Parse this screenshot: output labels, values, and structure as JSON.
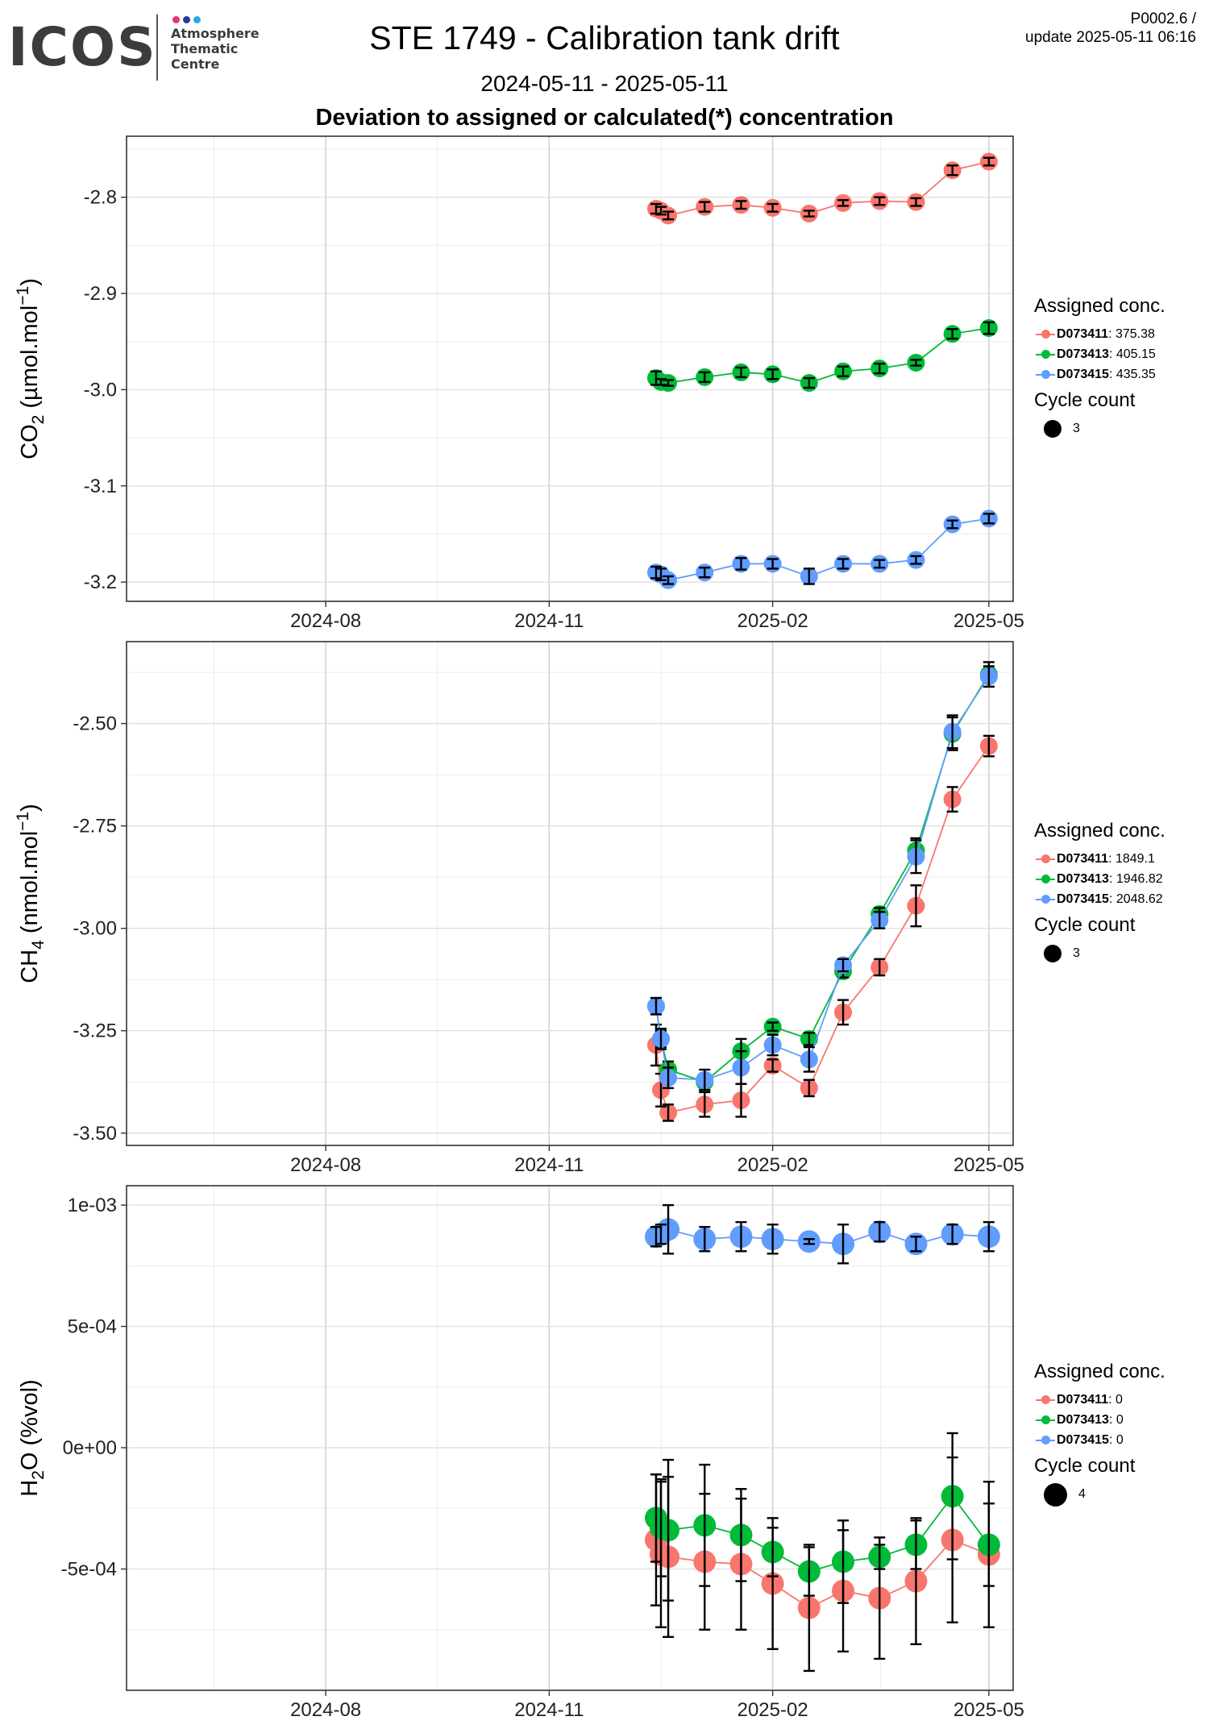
{
  "header": {
    "logo_word": "ICOS",
    "logo_sub": [
      "Atmosphere",
      "Thematic",
      "Centre"
    ],
    "logo_dot_colors": [
      "#e8336f",
      "#2b3a8f",
      "#27a9e1"
    ],
    "title": "STE 1749 - Calibration tank drift",
    "version_line1": "P0002.6 /",
    "version_line2": "update  2025-05-11 06:16",
    "date_range": "2024-05-11 - 2025-05-11",
    "subtitle": "Deviation to assigned or calculated(*) concentration"
  },
  "colors": {
    "D073411": "#f8766d",
    "D073413": "#00ba38",
    "D073415": "#619cff"
  },
  "chart_data": [
    {
      "type": "scatter",
      "ylabel_main": "CO",
      "ylabel_sub": "2",
      "ylabel_rest": " (µmol.mol",
      "ylabel_sup": "−1",
      "ylabel_close": ")",
      "xlim": [
        "2024-05-11",
        "2025-05-11"
      ],
      "ylim": [
        -3.22,
        -2.7366
      ],
      "yticks": [
        -2.8,
        -2.9,
        -3.0,
        -3.1,
        -3.2
      ],
      "ytick_labels": [
        "-2.8",
        "-2.9",
        "-3.0",
        "-3.1",
        "-3.2"
      ],
      "xticks": [
        "2024-08-01",
        "2024-11-01",
        "2025-02-01",
        "2025-05-01"
      ],
      "xtick_labels": [
        "2024-08",
        "2024-11",
        "2025-02",
        "2025-05"
      ],
      "point_size": 3,
      "series": [
        {
          "name": "D073411",
          "assigned": "375.38",
          "x": [
            "2024-12-15",
            "2024-12-17",
            "2024-12-20",
            "2025-01-04",
            "2025-01-19",
            "2025-02-01",
            "2025-02-16",
            "2025-03-02",
            "2025-03-17",
            "2025-04-01",
            "2025-04-16",
            "2025-05-01"
          ],
          "y": [
            -2.812,
            -2.814,
            -2.819,
            -2.81,
            -2.808,
            -2.811,
            -2.817,
            -2.806,
            -2.804,
            -2.805,
            -2.772,
            -2.763
          ],
          "err": [
            0.005,
            0.004,
            0.004,
            0.005,
            0.004,
            0.004,
            0.003,
            0.003,
            0.004,
            0.004,
            0.005,
            0.004
          ]
        },
        {
          "name": "D073413",
          "assigned": "405.15",
          "x": [
            "2024-12-15",
            "2024-12-17",
            "2024-12-20",
            "2025-01-04",
            "2025-01-19",
            "2025-02-01",
            "2025-02-16",
            "2025-03-02",
            "2025-03-17",
            "2025-04-01",
            "2025-04-16",
            "2025-05-01"
          ],
          "y": [
            -2.988,
            -2.992,
            -2.993,
            -2.987,
            -2.982,
            -2.984,
            -2.993,
            -2.981,
            -2.978,
            -2.972,
            -2.942,
            -2.936
          ],
          "err": [
            0.007,
            0.003,
            0.003,
            0.005,
            0.005,
            0.005,
            0.005,
            0.005,
            0.005,
            0.003,
            0.005,
            0.006
          ]
        },
        {
          "name": "D073415",
          "assigned": "435.35",
          "x": [
            "2024-12-15",
            "2024-12-17",
            "2024-12-20",
            "2025-01-04",
            "2025-01-19",
            "2025-02-01",
            "2025-02-16",
            "2025-03-02",
            "2025-03-17",
            "2025-04-01",
            "2025-04-16",
            "2025-05-01"
          ],
          "y": [
            -3.19,
            -3.192,
            -3.198,
            -3.19,
            -3.181,
            -3.181,
            -3.194,
            -3.181,
            -3.181,
            -3.177,
            -3.14,
            -3.134
          ],
          "err": [
            0.006,
            0.006,
            0.004,
            0.005,
            0.006,
            0.005,
            0.008,
            0.005,
            0.004,
            0.004,
            0.004,
            0.005
          ]
        }
      ]
    },
    {
      "type": "scatter",
      "ylabel_main": "CH",
      "ylabel_sub": "4",
      "ylabel_rest": " (nmol.mol",
      "ylabel_sup": "−1",
      "ylabel_close": ")",
      "xlim": [
        "2024-05-11",
        "2025-05-11"
      ],
      "ylim": [
        -3.53,
        -2.3
      ],
      "yticks": [
        -2.5,
        -2.75,
        -3.0,
        -3.25,
        -3.5
      ],
      "ytick_labels": [
        "-2.50",
        "-2.75",
        "-3.00",
        "-3.25",
        "-3.50"
      ],
      "xticks": [
        "2024-08-01",
        "2024-11-01",
        "2025-02-01",
        "2025-05-01"
      ],
      "xtick_labels": [
        "2024-08",
        "2024-11",
        "2025-02",
        "2025-05"
      ],
      "point_size": 3,
      "series": [
        {
          "name": "D073411",
          "assigned": "1849.1",
          "x": [
            "2024-12-15",
            "2024-12-17",
            "2024-12-20",
            "2025-01-04",
            "2025-01-19",
            "2025-02-01",
            "2025-02-16",
            "2025-03-02",
            "2025-03-17",
            "2025-04-01",
            "2025-04-16",
            "2025-05-01"
          ],
          "y": [
            -3.285,
            -3.395,
            -3.45,
            -3.43,
            -3.42,
            -3.335,
            -3.39,
            -3.205,
            -3.095,
            -2.945,
            -2.685,
            -2.555
          ],
          "err": [
            0.05,
            0.04,
            0.02,
            0.03,
            0.04,
            0.015,
            0.02,
            0.03,
            0.02,
            0.05,
            0.03,
            0.025
          ]
        },
        {
          "name": "D073413",
          "assigned": "1946.82",
          "x": [
            "2024-12-15",
            "2024-12-17",
            "2024-12-20",
            "2025-01-04",
            "2025-01-19",
            "2025-02-01",
            "2025-02-16",
            "2025-03-02",
            "2025-03-17",
            "2025-04-01",
            "2025-04-16",
            "2025-05-01"
          ],
          "y": [
            -3.19,
            -3.27,
            -3.345,
            -3.375,
            -3.3,
            -3.24,
            -3.27,
            -3.105,
            -2.965,
            -2.81,
            -2.525,
            -2.38
          ],
          "err": [
            0.02,
            0.02,
            0.02,
            0.02,
            0.03,
            0.01,
            0.015,
            0.015,
            0.015,
            0.03,
            0.04,
            0.03
          ]
        },
        {
          "name": "D073415",
          "assigned": "2048.62",
          "x": [
            "2024-12-15",
            "2024-12-17",
            "2024-12-20",
            "2025-01-04",
            "2025-01-19",
            "2025-02-01",
            "2025-02-16",
            "2025-03-02",
            "2025-03-17",
            "2025-04-01",
            "2025-04-16",
            "2025-05-01"
          ],
          "y": [
            -3.19,
            -3.27,
            -3.365,
            -3.37,
            -3.34,
            -3.285,
            -3.32,
            -3.09,
            -2.98,
            -2.825,
            -2.52,
            -2.385
          ],
          "err": [
            0.02,
            0.025,
            0.025,
            0.025,
            0.04,
            0.025,
            0.03,
            0.015,
            0.02,
            0.04,
            0.04,
            0.025
          ]
        }
      ]
    },
    {
      "type": "scatter",
      "ylabel_main": "H",
      "ylabel_sub": "2",
      "ylabel_rest": "O (%vol)",
      "ylabel_sup": "",
      "ylabel_close": "",
      "xlim": [
        "2024-05-11",
        "2025-05-11"
      ],
      "ylim": [
        -0.001,
        0.00108
      ],
      "yticks": [
        0.001,
        0.0005,
        0.0,
        -0.0005
      ],
      "ytick_labels": [
        "1e-03",
        "5e-04",
        "0e+00",
        "-5e-04"
      ],
      "xticks": [
        "2024-08-01",
        "2024-11-01",
        "2025-02-01",
        "2025-05-01"
      ],
      "xtick_labels": [
        "2024-08",
        "2024-11",
        "2025-02",
        "2025-05"
      ],
      "point_size": 4,
      "series": [
        {
          "name": "D073411",
          "assigned": "0",
          "x": [
            "2024-12-15",
            "2024-12-17",
            "2024-12-20",
            "2025-01-04",
            "2025-01-19",
            "2025-02-01",
            "2025-02-16",
            "2025-03-02",
            "2025-03-17",
            "2025-04-01",
            "2025-04-16",
            "2025-05-01"
          ],
          "y": [
            -0.00038,
            -0.00044,
            -0.00045,
            -0.00047,
            -0.00048,
            -0.00056,
            -0.00066,
            -0.00059,
            -0.00062,
            -0.00055,
            -0.00038,
            -0.00044
          ],
          "err": [
            0.00027,
            0.0003,
            0.00033,
            0.00028,
            0.00027,
            0.00027,
            0.00026,
            0.00025,
            0.00025,
            0.00026,
            0.00034,
            0.0003
          ]
        },
        {
          "name": "D073413",
          "assigned": "0",
          "x": [
            "2024-12-15",
            "2024-12-17",
            "2024-12-20",
            "2025-01-04",
            "2025-01-19",
            "2025-02-01",
            "2025-02-16",
            "2025-03-02",
            "2025-03-17",
            "2025-04-01",
            "2025-04-16",
            "2025-05-01"
          ],
          "y": [
            -0.00029,
            -0.00033,
            -0.00034,
            -0.00032,
            -0.00036,
            -0.00043,
            -0.00051,
            -0.00047,
            -0.00045,
            -0.0004,
            -0.0002,
            -0.0004
          ],
          "err": [
            0.00018,
            0.0002,
            0.00029,
            0.00025,
            0.00019,
            0.0001,
            0.0001,
            0.00017,
            5e-05,
            0.0001,
            0.00026,
            0.00017
          ]
        },
        {
          "name": "D073415",
          "assigned": "0",
          "x": [
            "2024-12-15",
            "2024-12-17",
            "2024-12-20",
            "2025-01-04",
            "2025-01-19",
            "2025-02-01",
            "2025-02-16",
            "2025-03-02",
            "2025-03-17",
            "2025-04-01",
            "2025-04-16",
            "2025-05-01"
          ],
          "y": [
            0.00087,
            0.00088,
            0.0009,
            0.00086,
            0.00087,
            0.00086,
            0.00085,
            0.00084,
            0.00089,
            0.00084,
            0.00088,
            0.00087
          ],
          "err": [
            4e-05,
            4e-05,
            0.0001,
            5e-05,
            6e-05,
            6e-05,
            1e-05,
            8e-05,
            4e-05,
            3e-05,
            4e-05,
            6e-05
          ]
        }
      ]
    }
  ],
  "legends": [
    {
      "title": "Assigned conc.",
      "cycle_title": "Cycle count",
      "cycle_value": "3",
      "items": [
        {
          "name": "D073411",
          "value": ": 375.38"
        },
        {
          "name": "D073413",
          "value": ": 405.15"
        },
        {
          "name": "D073415",
          "value": ": 435.35"
        }
      ]
    },
    {
      "title": "Assigned conc.",
      "cycle_title": "Cycle count",
      "cycle_value": "3",
      "items": [
        {
          "name": "D073411",
          "value": ": 1849.1"
        },
        {
          "name": "D073413",
          "value": ": 1946.82"
        },
        {
          "name": "D073415",
          "value": ": 2048.62"
        }
      ]
    },
    {
      "title": "Assigned conc.",
      "cycle_title": "Cycle count",
      "cycle_value": "4",
      "items": [
        {
          "name": "D073411",
          "value": ": 0"
        },
        {
          "name": "D073413",
          "value": ": 0"
        },
        {
          "name": "D073415",
          "value": ": 0"
        }
      ]
    }
  ]
}
